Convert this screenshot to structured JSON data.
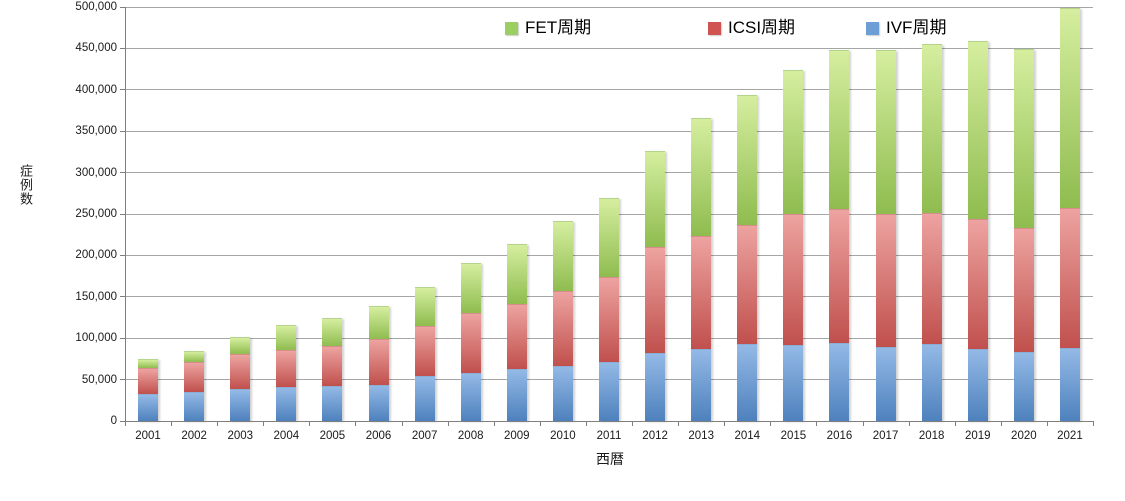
{
  "chart_data": {
    "type": "bar",
    "stacked": true,
    "title": "",
    "xlabel": "西暦",
    "ylabel": "症例数",
    "ylim": [
      0,
      500000
    ],
    "ytick_step": 50000,
    "grid": true,
    "legend_position": "top",
    "categories": [
      "2001",
      "2002",
      "2003",
      "2004",
      "2005",
      "2006",
      "2007",
      "2008",
      "2009",
      "2010",
      "2011",
      "2012",
      "2013",
      "2014",
      "2015",
      "2016",
      "2017",
      "2018",
      "2019",
      "2020",
      "2021"
    ],
    "series": [
      {
        "name": "IVF周期",
        "stack_position": "bottom",
        "color_top": "#93b9e6",
        "color_bottom": "#4e81bd",
        "border_color": "#4f81bd",
        "values": [
          32500,
          35500,
          39000,
          41500,
          42500,
          44000,
          54500,
          58000,
          62500,
          66500,
          71000,
          82500,
          87000,
          93000,
          92000,
          94000,
          89000,
          93000,
          87000,
          83000,
          88000
        ]
      },
      {
        "name": "ICSI周期",
        "stack_position": "middle",
        "color_top": "#eda3a0",
        "color_bottom": "#c0504d",
        "border_color": "#c0504d",
        "values": [
          31000,
          36000,
          41500,
          44500,
          47500,
          55000,
          60500,
          73000,
          78500,
          90500,
          103500,
          127500,
          136500,
          144000,
          158000,
          162000,
          161000,
          158000,
          157000,
          150000,
          169000
        ]
      },
      {
        "name": "FET周期",
        "stack_position": "top",
        "color_top": "#d5ee9f",
        "color_bottom": "#8fbc4f",
        "border_color": "#9bbb59",
        "values": [
          11000,
          13500,
          21000,
          30000,
          35000,
          40000,
          47000,
          59500,
          72500,
          85000,
          95000,
          116500,
          142500,
          156500,
          174000,
          191500,
          198000,
          204000,
          214500,
          216500,
          241500
        ]
      }
    ],
    "totals": [
      74500,
      85000,
      101500,
      116000,
      125000,
      139000,
      162000,
      190500,
      213500,
      242000,
      269500,
      326500,
      366000,
      393500,
      424000,
      447500,
      448000,
      455000,
      458500,
      449500,
      498500
    ]
  },
  "legend": {
    "items": [
      {
        "label": "FET周期",
        "color": "#9ccf63"
      },
      {
        "label": "ICSI周期",
        "color": "#cf5351"
      },
      {
        "label": "IVF周期",
        "color": "#6d9ed6"
      }
    ]
  },
  "axes": {
    "y_tick_labels": [
      "0",
      "50,000",
      "100,000",
      "150,000",
      "200,000",
      "250,000",
      "300,000",
      "350,000",
      "400,000",
      "450,000",
      "500,000"
    ],
    "y_axis_title": "症例数",
    "x_axis_title": "西暦"
  },
  "colors": {
    "gridline": "#a6a6a6",
    "axis": "#7f7f7f",
    "text": "#1a1a1a"
  }
}
